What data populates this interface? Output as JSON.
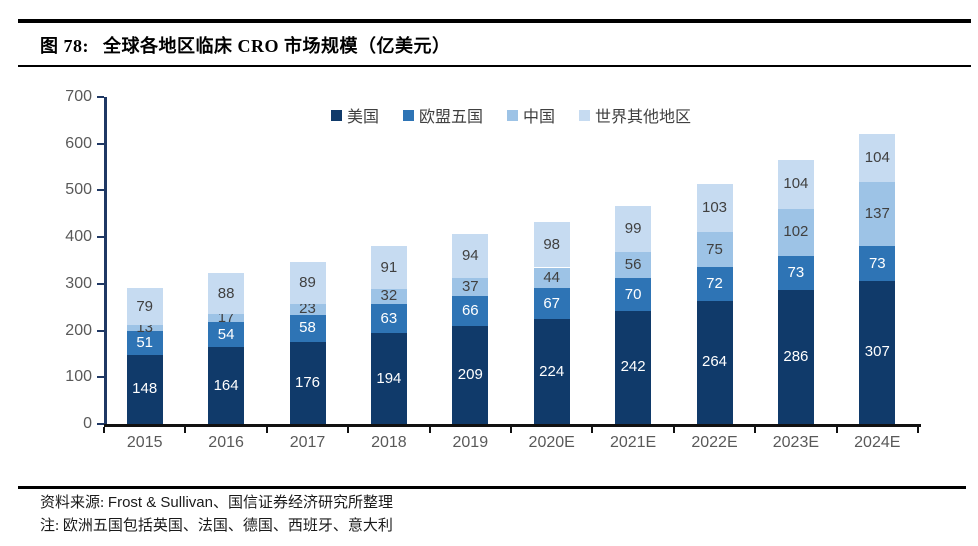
{
  "header": {
    "fig_label": "图 78:",
    "title": "全球各地区临床 CRO 市场规模（亿美元）"
  },
  "footer": {
    "source_prefix": "资料来源: ",
    "source_vendor": "Frost & Sullivan",
    "source_suffix": "、国信证券经济研究所整理",
    "note": "注: 欧洲五国包括英国、法国、德国、西班牙、意大利"
  },
  "colors": {
    "us": "#103a6a",
    "eu5": "#2e74b5",
    "china": "#9dc3e6",
    "rest_of_world": "#c6dbf1",
    "y_axis_line": "#1f3864",
    "x_axis_line": "#111111",
    "tick_label": "#595959",
    "value_label_dark": "#404040",
    "value_label_light": "#ffffff"
  },
  "chart_data": {
    "type": "bar",
    "stacked": true,
    "title": "全球各地区临床 CRO 市场规模（亿美元）",
    "categories": [
      "2015",
      "2016",
      "2017",
      "2018",
      "2019",
      "2020E",
      "2021E",
      "2022E",
      "2023E",
      "2024E"
    ],
    "series": [
      {
        "name": "美国",
        "color": "#103a6a",
        "label_color": "#ffffff",
        "values": [
          148,
          164,
          176,
          194,
          209,
          224,
          242,
          264,
          286,
          307
        ]
      },
      {
        "name": "欧盟五国",
        "color": "#2e74b5",
        "label_color": "#ffffff",
        "values": [
          51,
          54,
          58,
          63,
          66,
          67,
          70,
          72,
          73,
          73
        ]
      },
      {
        "name": "中国",
        "color": "#9dc3e6",
        "label_color": "#404040",
        "values": [
          13,
          17,
          23,
          32,
          37,
          44,
          56,
          75,
          102,
          137
        ]
      },
      {
        "name": "世界其他地区",
        "color": "#c6dbf1",
        "label_color": "#404040",
        "values": [
          79,
          88,
          89,
          91,
          94,
          98,
          99,
          103,
          104,
          104
        ]
      }
    ],
    "ylim": [
      0,
      700
    ],
    "ytick_step": 100,
    "legend_position": "top-center",
    "grid": false
  }
}
